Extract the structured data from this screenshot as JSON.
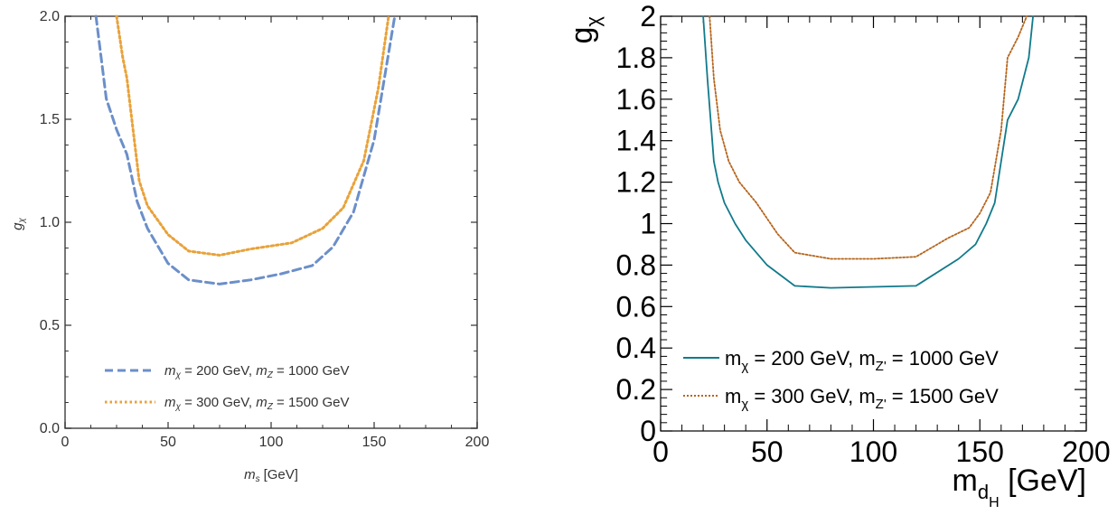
{
  "chart_data": [
    {
      "type": "line",
      "xlabel": "m",
      "xlabel_sub": "s",
      "xlabel_unit": "[GeV]",
      "ylabel": "g",
      "ylabel_sub": "χ",
      "xlim": [
        0,
        200
      ],
      "ylim": [
        0,
        2.0
      ],
      "xticks": [
        "0",
        "50",
        "100",
        "150",
        "200"
      ],
      "yticks": [
        "0.0",
        "0.5",
        "1.0",
        "1.5",
        "2.0"
      ],
      "grid": false,
      "legend_position": "bottom-center",
      "series": [
        {
          "legend": [
            "m",
            "χ",
            " = 200 GeV, ",
            "m",
            "Z",
            " = 1000 GeV"
          ],
          "color": "#6b8fc9",
          "dash": "dashed",
          "x": [
            15,
            20,
            25,
            30,
            35,
            40,
            50,
            60,
            75,
            90,
            105,
            120,
            130,
            140,
            150,
            160
          ],
          "y": [
            2.0,
            1.6,
            1.45,
            1.33,
            1.1,
            0.97,
            0.8,
            0.72,
            0.7,
            0.72,
            0.75,
            0.79,
            0.88,
            1.05,
            1.4,
            2.0
          ]
        },
        {
          "legend": [
            "m",
            "χ",
            " = 300 GeV, ",
            "m",
            "Z",
            " = 1500 GeV"
          ],
          "color": "#e8a23a",
          "dash": "dotted",
          "x": [
            25,
            28,
            30,
            33,
            36,
            40,
            50,
            60,
            75,
            90,
            110,
            125,
            135,
            145,
            152,
            157
          ],
          "y": [
            2.0,
            1.8,
            1.7,
            1.45,
            1.2,
            1.08,
            0.94,
            0.86,
            0.84,
            0.87,
            0.9,
            0.97,
            1.07,
            1.3,
            1.65,
            2.0
          ]
        }
      ]
    },
    {
      "type": "line",
      "xlabel": "m",
      "xlabel_sub": "d",
      "xlabel_subsub": "H",
      "xlabel_unit": " [GeV]",
      "ylabel": "g",
      "ylabel_sub": "χ",
      "xlim": [
        0,
        200
      ],
      "ylim": [
        0,
        2.0
      ],
      "xticks": [
        "0",
        "50",
        "100",
        "150",
        "200"
      ],
      "yticks": [
        "0",
        "0.2",
        "0.4",
        "0.6",
        "0.8",
        "1",
        "1.2",
        "1.4",
        "1.6",
        "1.8",
        "2"
      ],
      "grid": false,
      "legend_position": "bottom-left",
      "series": [
        {
          "legend": [
            "m",
            "χ",
            " = 200 GeV, m",
            "Z'",
            " = 1000 GeV"
          ],
          "color": "#117a8b",
          "dash": "solid",
          "x": [
            20,
            22,
            25,
            27,
            30,
            35,
            40,
            50,
            63,
            80,
            100,
            120,
            140,
            148,
            153,
            157,
            160,
            163,
            168,
            173,
            175
          ],
          "y": [
            2.0,
            1.7,
            1.3,
            1.2,
            1.1,
            1.0,
            0.92,
            0.8,
            0.7,
            0.69,
            0.695,
            0.7,
            0.83,
            0.9,
            1.0,
            1.1,
            1.3,
            1.5,
            1.6,
            1.8,
            2.0
          ]
        },
        {
          "legend": [
            "m",
            "χ",
            " = 300 GeV, m",
            "Z'",
            " = 1500 GeV"
          ],
          "color": "#b5651d",
          "dash": "dotted",
          "x": [
            23,
            25,
            28,
            32,
            37,
            45,
            55,
            63,
            80,
            100,
            120,
            135,
            145,
            150,
            155,
            160,
            163,
            168,
            172
          ],
          "y": [
            2.0,
            1.7,
            1.45,
            1.3,
            1.2,
            1.1,
            0.95,
            0.86,
            0.83,
            0.83,
            0.84,
            0.93,
            0.98,
            1.05,
            1.15,
            1.45,
            1.8,
            1.9,
            2.0
          ]
        }
      ]
    }
  ]
}
